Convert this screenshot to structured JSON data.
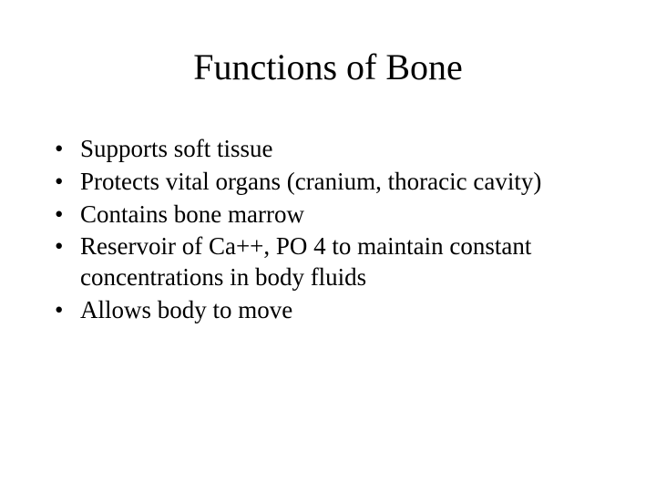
{
  "slide": {
    "title": "Functions of Bone",
    "bullets": [
      "Supports soft tissue",
      "Protects vital organs (cranium, thoracic cavity)",
      "Contains bone marrow",
      "Reservoir of Ca++, PO 4 to maintain constant concentrations in body fluids",
      "Allows body to move"
    ]
  },
  "style": {
    "background_color": "#ffffff",
    "text_color": "#000000",
    "font_family": "Times New Roman",
    "title_fontsize": 40,
    "body_fontsize": 27
  }
}
